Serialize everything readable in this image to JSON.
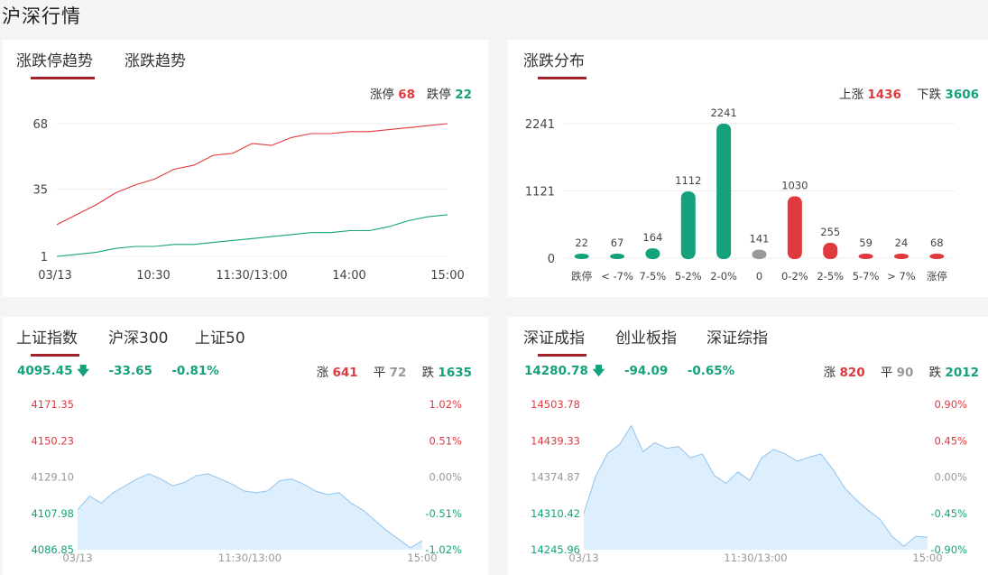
{
  "page": {
    "title": "沪深行情"
  },
  "limit_panel": {
    "tabs": [
      "涨跌停趋势",
      "涨跌趋势"
    ],
    "stats": {
      "up_label": "涨停",
      "up_value": "68",
      "down_label": "跌停",
      "down_value": "22"
    }
  },
  "dist_panel": {
    "tabs": [
      "涨跌分布"
    ],
    "stats": {
      "up_label": "上涨",
      "up_value": "1436",
      "down_label": "下跌",
      "down_value": "3606"
    }
  },
  "sh_panel": {
    "tabs": [
      "上证指数",
      "沪深300",
      "上证50"
    ],
    "quote": {
      "price": "4095.45",
      "change": "-33.65",
      "pct": "-0.81%",
      "up_label": "涨",
      "up": "641",
      "flat_label": "平",
      "flat": "72",
      "down_label": "跌",
      "down": "1635"
    }
  },
  "sz_panel": {
    "tabs": [
      "深证成指",
      "创业板指",
      "深证综指"
    ],
    "quote": {
      "price": "14280.78",
      "change": "-94.09",
      "pct": "-0.65%",
      "up_label": "涨",
      "up": "820",
      "flat_label": "平",
      "flat": "90",
      "down_label": "跌",
      "down": "2012"
    }
  },
  "colors": {
    "up": "#e0393e",
    "down": "#14a27c",
    "flat": "#999999",
    "area": "#ddeefc",
    "area_line": "#92c4ee",
    "tab_underline": "#a3232a"
  },
  "chart_data": [
    {
      "type": "line",
      "x_ticks": [
        "03/13",
        "10:30",
        "11:30/13:00",
        "14:00",
        "15:00"
      ],
      "y_ticks": [
        "68",
        "35",
        "1"
      ],
      "ylim": [
        1,
        68
      ],
      "series": [
        {
          "name": "涨停",
          "color": "#e0393e",
          "values": [
            17,
            22,
            27,
            33,
            37,
            40,
            45,
            47,
            52,
            53,
            58,
            57,
            61,
            63,
            63,
            64,
            64,
            65,
            66,
            67,
            68
          ]
        },
        {
          "name": "跌停",
          "color": "#14a27c",
          "values": [
            1,
            2,
            3,
            5,
            6,
            6,
            7,
            7,
            8,
            9,
            10,
            11,
            12,
            13,
            13,
            14,
            14,
            16,
            19,
            21,
            22
          ]
        }
      ]
    },
    {
      "type": "bar",
      "categories": [
        "跌停",
        "< -7%",
        "7-5%",
        "5-2%",
        "2-0%",
        "0",
        "0-2%",
        "2-5%",
        "5-7%",
        "> 7%",
        "涨停"
      ],
      "values": [
        22,
        67,
        164,
        1112,
        2241,
        141,
        1030,
        255,
        59,
        24,
        68
      ],
      "colors": [
        "#14a27c",
        "#14a27c",
        "#14a27c",
        "#14a27c",
        "#14a27c",
        "#999999",
        "#e0393e",
        "#e0393e",
        "#e0393e",
        "#e0393e",
        "#e0393e"
      ],
      "y_ticks": [
        "2241",
        "1121",
        "0"
      ],
      "ylim": [
        0,
        2241
      ]
    },
    {
      "type": "area",
      "x_ticks": [
        "03/13",
        "11:30/13:00",
        "15:00"
      ],
      "y_ticks": [
        "4171.35",
        "4150.23",
        "4129.10",
        "4107.98",
        "4086.85"
      ],
      "pct_ticks": [
        "1.02%",
        "0.51%",
        "0.00%",
        "-0.51%",
        "-1.02%"
      ],
      "ylim": [
        4086.85,
        4171.35
      ],
      "values": [
        4110,
        4118,
        4114,
        4120,
        4124,
        4128,
        4131,
        4128,
        4124,
        4126,
        4130,
        4131,
        4128,
        4125,
        4121,
        4120,
        4121,
        4127,
        4128,
        4125,
        4121,
        4119,
        4120,
        4114,
        4110,
        4104,
        4098,
        4093,
        4088,
        4092
      ]
    },
    {
      "type": "area",
      "x_ticks": [
        "03/13",
        "11:30/13:00",
        "15:00"
      ],
      "y_ticks": [
        "14503.78",
        "14439.33",
        "14374.87",
        "14310.42",
        "14245.96"
      ],
      "pct_ticks": [
        "0.90%",
        "0.45%",
        "0.00%",
        "-0.45%",
        "-0.90%"
      ],
      "ylim": [
        14245.96,
        14503.78
      ],
      "values": [
        14310,
        14376,
        14417,
        14432,
        14466,
        14420,
        14436,
        14426,
        14429,
        14409,
        14416,
        14378,
        14364,
        14384,
        14369,
        14409,
        14424,
        14416,
        14403,
        14410,
        14416,
        14389,
        14356,
        14334,
        14316,
        14300,
        14270,
        14252,
        14270,
        14268
      ]
    }
  ]
}
